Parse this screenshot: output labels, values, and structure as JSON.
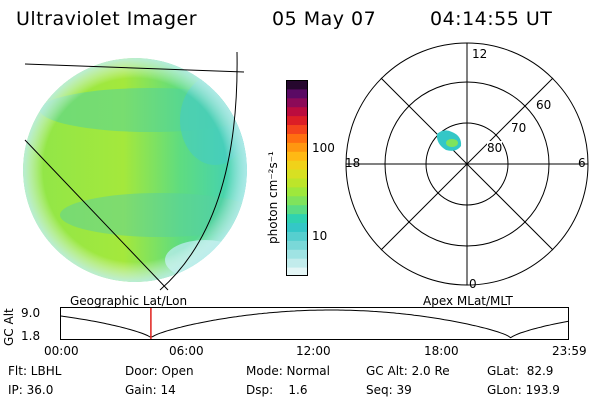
{
  "header": {
    "instrument": "Ultraviolet Imager",
    "date": "05 May 07",
    "time": "04:14:55 UT"
  },
  "colorbar": {
    "unit_label": "photon cm⁻²s⁻¹",
    "ticks": [
      "100",
      "10"
    ],
    "colors": [
      "#e4f6f6",
      "#c2ecec",
      "#9fe3e3",
      "#7ad8d8",
      "#56cfcf",
      "#34c7c7",
      "#2fd2b0",
      "#5adc84",
      "#7fe35c",
      "#9ee83c",
      "#bde52a",
      "#d7e022",
      "#f0d21a",
      "#ffb914",
      "#ff9710",
      "#ff6f10",
      "#f4441c",
      "#dc1e26",
      "#bb0c3e",
      "#8c0a58",
      "#5a0a64",
      "#26072e"
    ]
  },
  "left_panel": {
    "label": "Geographic Lat/Lon"
  },
  "right_panel": {
    "label": "Apex MLat/MLT",
    "mlt_labels": {
      "top": "12",
      "bottom": "0",
      "left": "18",
      "right": "6"
    },
    "lat_labels": [
      "60",
      "70",
      "80"
    ]
  },
  "timeline": {
    "y_axis_label": "GC Alt",
    "y_ticks": [
      "9.0",
      "1.8"
    ],
    "x_ticks": [
      "00:00",
      "06:00",
      "12:00",
      "18:00",
      "23:59"
    ],
    "current_time_marker": "04:14:55"
  },
  "status": {
    "flt": "Flt: LBHL",
    "ip": "IP: 36.0",
    "door": "Door: Open",
    "gain": "Gain: 14",
    "mode": "Mode: Normal",
    "dsp": "Dsp:    1.6",
    "gc_alt": "GC Alt: 2.0 Re",
    "seq": "Seq: 39",
    "glat": "GLat:  82.9",
    "glon": "GLon: 193.9"
  }
}
